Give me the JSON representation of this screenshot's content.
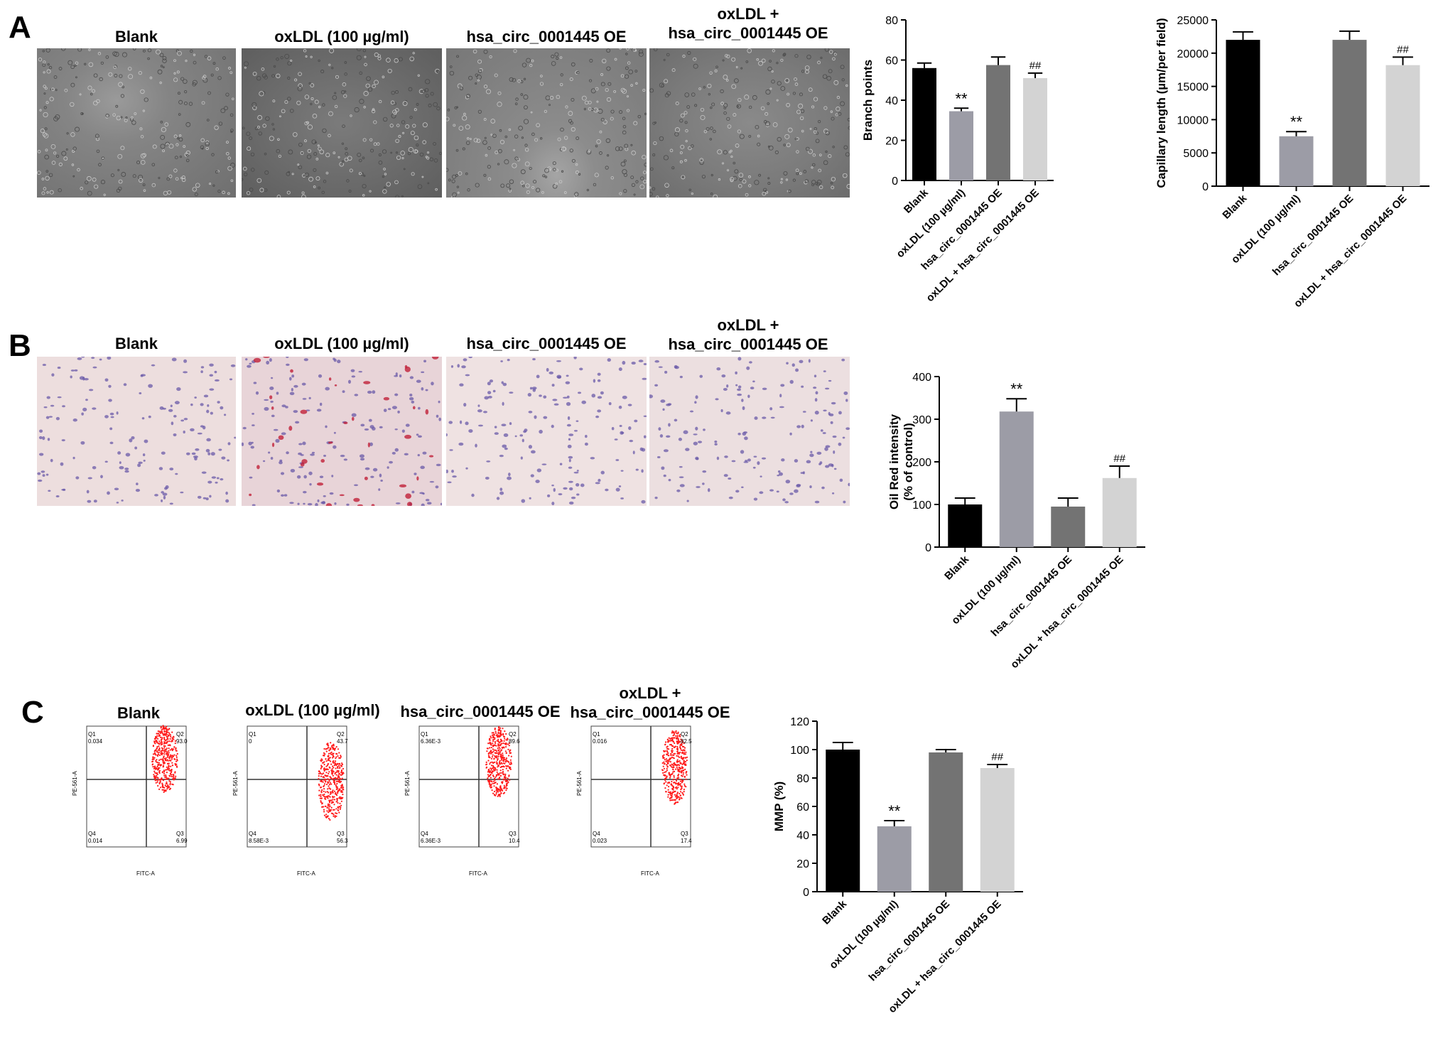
{
  "panels": {
    "A": {
      "letter": "A",
      "image_titles": [
        "Blank",
        "oxLDL (100 µg/ml)",
        "hsa_circ_0001445 OE",
        "oxLDL +\nhsa_circ_0001445 OE"
      ]
    },
    "B": {
      "letter": "B",
      "image_titles": [
        "Blank",
        "oxLDL (100 µg/ml)",
        "hsa_circ_0001445 OE",
        "oxLDL +\nhsa_circ_0001445 OE"
      ]
    },
    "C": {
      "letter": "C",
      "image_titles": [
        "Blank",
        "oxLDL (100 µg/ml)",
        "hsa_circ_0001445 OE",
        "oxLDL +\nhsa_circ_0001445 OE"
      ],
      "flow_plots": [
        {
          "q1": "Q1",
          "q1_val": "0.034",
          "q2": "Q2",
          "q2_val": "93.0",
          "q3": "Q3",
          "q3_val": "6.99",
          "q4": "Q4",
          "q4_val": "0.014"
        },
        {
          "q1": "Q1",
          "q1_val": "0",
          "q2": "Q2",
          "q2_val": "43.7",
          "q3": "Q3",
          "q3_val": "56.3",
          "q4": "Q4",
          "q4_val": "8.58E-3"
        },
        {
          "q1": "Q1",
          "q1_val": "6.36E-3",
          "q2": "Q2",
          "q2_val": "89.6",
          "q3": "Q3",
          "q3_val": "10.4",
          "q4": "Q4",
          "q4_val": "6.36E-3"
        },
        {
          "q1": "Q1",
          "q1_val": "0.016",
          "q2": "Q2",
          "q2_val": "82.5",
          "q3": "Q3",
          "q3_val": "17.4",
          "q4": "Q4",
          "q4_val": "0.023"
        }
      ],
      "flow_x_axis": "FITC-A",
      "flow_y_axis": "PE-561-A"
    }
  },
  "colors": {
    "blank": "#000000",
    "oxldl": "#9c9ca6",
    "oe": "#737373",
    "combo": "#d3d3d3",
    "dots": "#ff1a1a"
  },
  "chart_data": [
    {
      "type": "bar",
      "panel": "A",
      "categories": [
        "Blank",
        "oxLDL (100 µg/ml)",
        "hsa_circ_0001445 OE",
        "oxLDL + hsa_circ_0001445 OE"
      ],
      "values": [
        56,
        34.5,
        57.5,
        51
      ],
      "errors": [
        2.5,
        1.5,
        4,
        2.5
      ],
      "annotations": [
        "",
        "**",
        "",
        "##"
      ],
      "ylabel": "Branch points",
      "ylim": [
        0,
        80
      ],
      "yticks": [
        0,
        20,
        40,
        60,
        80
      ]
    },
    {
      "type": "bar",
      "panel": "A",
      "categories": [
        "Blank",
        "oxLDL (100 µg/ml)",
        "hsa_circ_0001445 OE",
        "oxLDL + hsa_circ_0001445 OE"
      ],
      "values": [
        22000,
        7500,
        22000,
        18200
      ],
      "errors": [
        1200,
        700,
        1300,
        1200
      ],
      "annotations": [
        "",
        "**",
        "",
        "##"
      ],
      "ylabel": "Capillary length (µm/per field)",
      "ylim": [
        0,
        25000
      ],
      "yticks": [
        0,
        5000,
        10000,
        15000,
        20000,
        25000
      ]
    },
    {
      "type": "bar",
      "panel": "B",
      "categories": [
        "Blank",
        "oxLDL (100 µg/ml)",
        "hsa_circ_0001445 OE",
        "oxLDL + hsa_circ_0001445 OE"
      ],
      "values": [
        100,
        318,
        95,
        162
      ],
      "errors": [
        15,
        30,
        20,
        28
      ],
      "annotations": [
        "",
        "**",
        "",
        "##"
      ],
      "ylabel": "Oil Red intensity",
      "ylabel2": "(% of control)",
      "ylim": [
        0,
        400
      ],
      "yticks": [
        0,
        100,
        200,
        300,
        400
      ]
    },
    {
      "type": "bar",
      "panel": "C",
      "categories": [
        "Blank",
        "oxLDL (100 µg/ml)",
        "hsa_circ_0001445 OE",
        "oxLDL + hsa_circ_0001445 OE"
      ],
      "values": [
        100,
        46,
        98,
        87
      ],
      "errors": [
        5,
        4,
        2,
        2.5
      ],
      "annotations": [
        "",
        "**",
        "",
        "##"
      ],
      "ylabel": "MMP (%)",
      "ylim": [
        0,
        120
      ],
      "yticks": [
        0,
        20,
        40,
        60,
        80,
        100,
        120
      ]
    }
  ]
}
